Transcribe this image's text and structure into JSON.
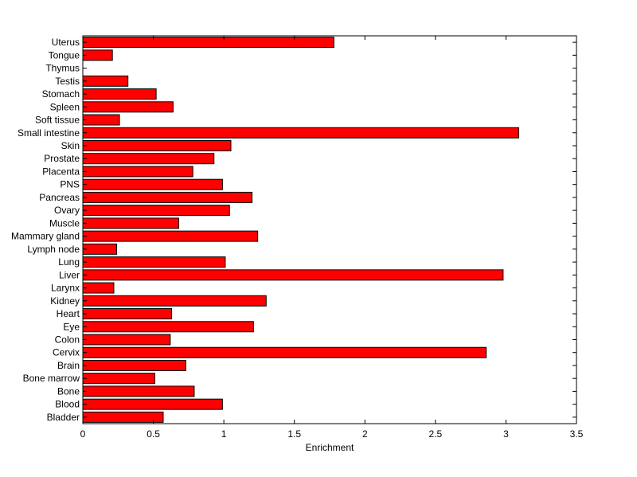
{
  "chart_data": {
    "type": "bar",
    "orientation": "horizontal",
    "title": "",
    "xlabel": "Enrichment",
    "ylabel": "",
    "xlim": [
      0,
      3.5
    ],
    "xticks": [
      "0",
      "0.5",
      "1",
      "1.5",
      "2",
      "2.5",
      "3",
      "3.5"
    ],
    "grid": false,
    "bar_color": "#ff0000",
    "bar_edge_color": "#000000",
    "categories": [
      "Bladder",
      "Blood",
      "Bone",
      "Bone marrow",
      "Brain",
      "Cervix",
      "Colon",
      "Eye",
      "Heart",
      "Kidney",
      "Larynx",
      "Liver",
      "Lung",
      "Lymph node",
      "Mammary gland",
      "Muscle",
      "Ovary",
      "Pancreas",
      "PNS",
      "Placenta",
      "Prostate",
      "Skin",
      "Small intestine",
      "Soft tissue",
      "Spleen",
      "Stomach",
      "Testis",
      "Thymus",
      "Tongue",
      "Uterus"
    ],
    "values": [
      0.57,
      0.99,
      0.79,
      0.51,
      0.73,
      2.86,
      0.62,
      1.21,
      0.63,
      1.3,
      0.22,
      2.98,
      1.01,
      0.24,
      1.24,
      0.68,
      1.04,
      1.2,
      0.99,
      0.78,
      0.93,
      1.05,
      3.09,
      0.26,
      0.64,
      0.52,
      0.32,
      0.0,
      0.21,
      1.78
    ]
  }
}
